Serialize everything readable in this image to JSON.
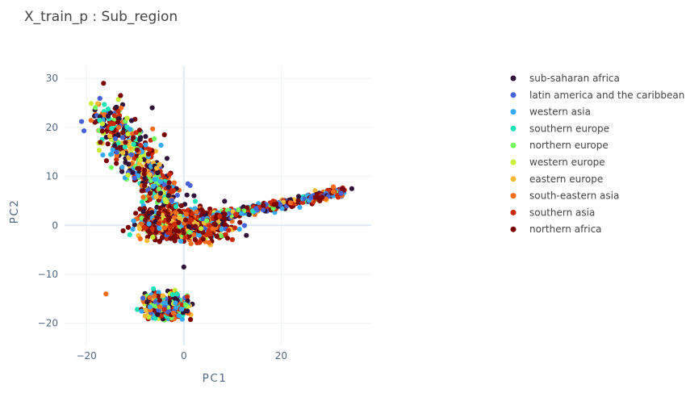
{
  "chart_data": {
    "type": "scatter",
    "title": "X_train_p : Sub_region",
    "xlabel": "PC1",
    "ylabel": "PC2",
    "xlim": [
      -24.5,
      38.5
    ],
    "ylim": [
      -24.5,
      32.5
    ],
    "x_ticks": [
      -20,
      0,
      20
    ],
    "y_ticks": [
      -20,
      -10,
      0,
      10,
      20,
      30
    ],
    "x_tick_labels": [
      "−20",
      "0",
      "20"
    ],
    "y_tick_labels": [
      "−20",
      "−10",
      "0",
      "10",
      "20",
      "30"
    ],
    "grid": true,
    "legend_position": "right",
    "series": [
      {
        "name": "sub-saharan africa",
        "color": "#30123b"
      },
      {
        "name": "latin america and the caribbean",
        "color": "#4662d7"
      },
      {
        "name": "western asia",
        "color": "#36aaf9"
      },
      {
        "name": "southern europe",
        "color": "#1ae4b6"
      },
      {
        "name": "northern europe",
        "color": "#72fe5e"
      },
      {
        "name": "western europe",
        "color": "#c8ef34"
      },
      {
        "name": "eastern europe",
        "color": "#faba39"
      },
      {
        "name": "south-eastern asia",
        "color": "#f66b19"
      },
      {
        "name": "southern asia",
        "color": "#ca2a04"
      },
      {
        "name": "northern africa",
        "color": "#7a0403"
      }
    ],
    "clusters": [
      {
        "region": "upper-left arm",
        "x_range": [
          -20,
          0
        ],
        "y_range": [
          2,
          29
        ]
      },
      {
        "region": "central blob",
        "x_range": [
          -11,
          10
        ],
        "y_range": [
          -5,
          6
        ]
      },
      {
        "region": "right arm",
        "x_range": [
          8,
          35
        ],
        "y_range": [
          1,
          8
        ]
      },
      {
        "region": "lower cluster",
        "x_range": [
          -9,
          3
        ],
        "y_range": [
          -20.5,
          -13
        ]
      }
    ],
    "outliers": [
      {
        "x": -16.5,
        "y": 29.0,
        "series": 9
      },
      {
        "x": -13,
        "y": 26.5,
        "series": 9
      },
      {
        "x": -6.5,
        "y": 24.0,
        "series": 0
      },
      {
        "x": -4.0,
        "y": 18.5,
        "series": 9
      },
      {
        "x": -16,
        "y": -14,
        "series": 7
      },
      {
        "x": 0,
        "y": -8.5,
        "series": 0
      },
      {
        "x": 34.5,
        "y": 7.5,
        "series": 0
      },
      {
        "x": -20.5,
        "y": 19.3,
        "series": 1
      },
      {
        "x": -21,
        "y": 21.2,
        "series": 1
      }
    ]
  }
}
